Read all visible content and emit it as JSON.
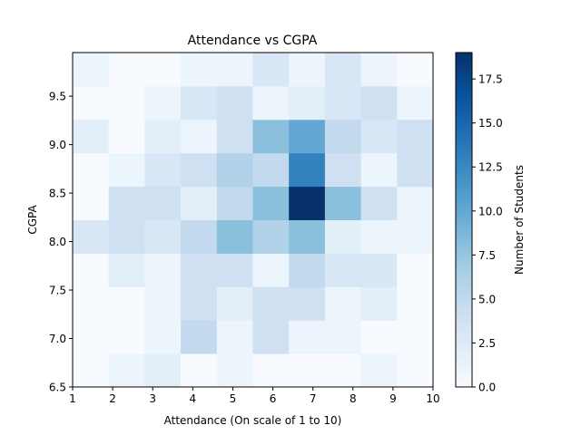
{
  "chart_data": {
    "type": "heatmap",
    "title": "Attendance vs CGPA",
    "xlabel": "Attendance (On scale of 1 to 10)",
    "ylabel": "CGPA",
    "colorbar_label": "Number of Students",
    "colormap": "Blues",
    "xlim": [
      1,
      10
    ],
    "ylim": [
      6.5,
      9.95
    ],
    "x_ticks": [
      "1",
      "2",
      "3",
      "4",
      "5",
      "6",
      "7",
      "8",
      "9",
      "10"
    ],
    "y_ticks": [
      "6.5",
      "7.0",
      "7.5",
      "8.0",
      "8.5",
      "9.0",
      "9.5"
    ],
    "x_edges": [
      1,
      1.9,
      2.8,
      3.7,
      4.6,
      5.5,
      6.4,
      7.3,
      8.2,
      9.1,
      10
    ],
    "y_edges": [
      6.5,
      6.845,
      7.19,
      7.535,
      7.88,
      8.225,
      8.57,
      8.915,
      9.26,
      9.605,
      9.95
    ],
    "vmin": 0,
    "vmax": 19,
    "colorbar_ticks": [
      "0.0",
      "2.5",
      "5.0",
      "7.5",
      "10.0",
      "12.5",
      "15.0",
      "17.5"
    ],
    "counts_rows_bottom_to_top": [
      [
        0,
        1,
        2,
        0,
        1,
        0,
        0,
        0,
        1,
        0
      ],
      [
        0,
        0,
        1,
        5,
        1,
        4,
        1,
        1,
        0,
        0
      ],
      [
        0,
        0,
        1,
        4,
        2,
        4,
        4,
        1,
        2,
        0
      ],
      [
        0,
        2,
        1,
        4,
        4,
        1,
        5,
        3,
        3,
        0
      ],
      [
        3,
        4,
        3,
        5,
        8,
        6,
        8,
        2,
        1,
        1
      ],
      [
        0,
        4,
        4,
        2,
        5,
        8,
        19,
        8,
        4,
        1
      ],
      [
        0,
        1,
        3,
        4,
        6,
        5,
        13,
        4,
        1,
        4
      ],
      [
        2,
        0,
        2,
        1,
        4,
        8,
        10,
        5,
        3,
        4
      ],
      [
        0,
        0,
        1,
        3,
        4,
        1,
        2,
        3,
        4,
        1
      ],
      [
        1,
        0,
        0,
        1,
        1,
        3,
        1,
        3,
        1,
        0
      ]
    ]
  }
}
